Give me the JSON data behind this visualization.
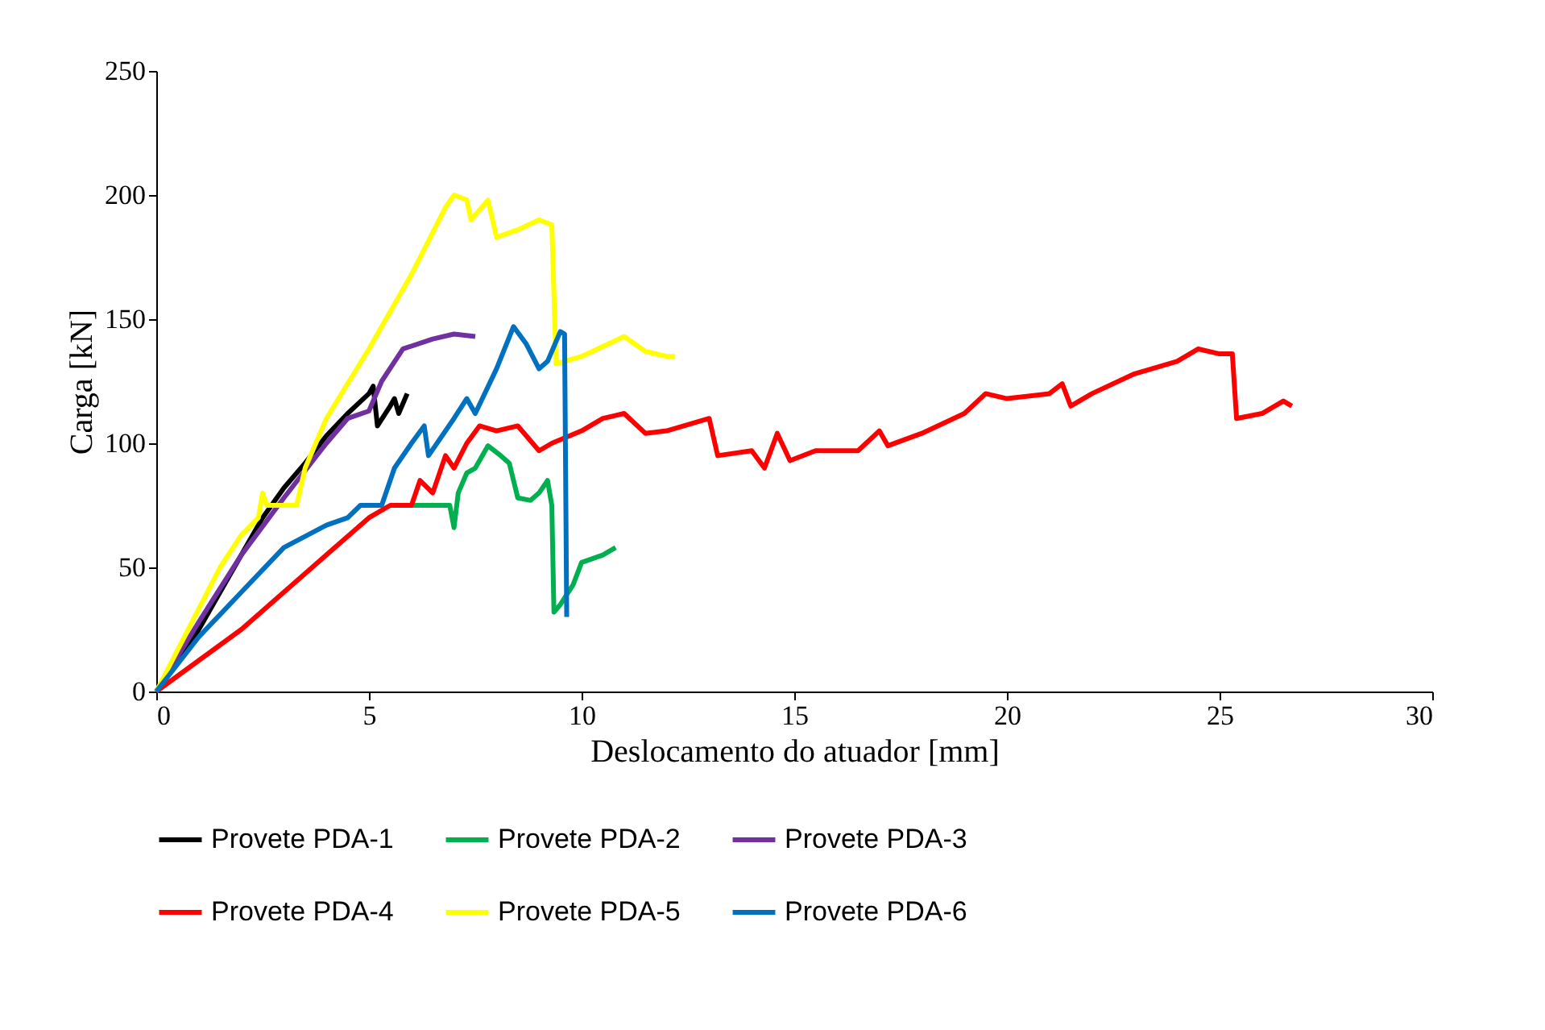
{
  "chart_data": {
    "type": "line",
    "xlabel": "Deslocamento do atuador [mm]",
    "ylabel": "Carga [kN]",
    "xlim": [
      0,
      30
    ],
    "ylim": [
      0,
      250
    ],
    "xticks": [
      0,
      5,
      10,
      15,
      20,
      25,
      30
    ],
    "yticks": [
      0,
      50,
      100,
      150,
      200,
      250
    ],
    "grid": false,
    "legend": "bottom",
    "marker": "none",
    "line_style": "solid",
    "series": [
      {
        "name": "Provete PDA-1",
        "color": "#000000",
        "x": [
          0,
          1,
          2,
          2.5,
          3,
          3.5,
          4,
          4.5,
          5,
          5.1,
          5.2,
          5.5,
          5.6,
          5.7,
          5.9
        ],
        "values": [
          0,
          25,
          55,
          70,
          82,
          92,
          103,
          112,
          120,
          123,
          107,
          115,
          118,
          112,
          120
        ]
      },
      {
        "name": "Provete PDA-2",
        "color": "#00b050",
        "x": [
          5.5,
          6.5,
          6.9,
          7,
          7.1,
          7.3,
          7.5,
          7.8,
          8.1,
          8.3,
          8.5,
          8.8,
          9,
          9.2,
          9.3,
          9.35,
          9.5,
          9.8,
          10,
          10.5,
          10.8
        ],
        "values": [
          75,
          75,
          75,
          66,
          80,
          88,
          90,
          99,
          95,
          92,
          78,
          77,
          80,
          85,
          75,
          32,
          35,
          43,
          52,
          55,
          58
        ]
      },
      {
        "name": "Provete PDA-3",
        "color": "#7030a0",
        "x": [
          0,
          1,
          2,
          3,
          4,
          4.5,
          5,
          5.3,
          5.8,
          6.5,
          7,
          7.5
        ],
        "values": [
          0,
          28,
          55,
          78,
          100,
          110,
          113,
          125,
          138,
          142,
          144,
          143
        ]
      },
      {
        "name": "Provete PDA-4",
        "color": "#ff0000",
        "x": [
          0,
          2,
          4,
          5,
          5.5,
          6,
          6.2,
          6.5,
          6.8,
          7,
          7.3,
          7.6,
          8,
          8.5,
          9,
          9.3,
          10,
          10.5,
          11,
          11.5,
          12,
          13,
          13.2,
          14,
          14.3,
          14.6,
          14.9,
          15.5,
          16.5,
          17,
          17.2,
          18,
          19,
          19.5,
          20,
          21,
          21.3,
          21.5,
          22,
          23,
          24,
          24.5,
          25,
          25.3,
          25.4,
          26,
          26.5,
          26.7
        ],
        "values": [
          0,
          25,
          55,
          70,
          75,
          75,
          85,
          80,
          95,
          90,
          100,
          107,
          105,
          107,
          97,
          100,
          105,
          110,
          112,
          104,
          105,
          110,
          95,
          97,
          90,
          104,
          93,
          97,
          97,
          105,
          99,
          104,
          112,
          120,
          118,
          120,
          124,
          115,
          120,
          128,
          133,
          138,
          136,
          136,
          110,
          112,
          117,
          115
        ]
      },
      {
        "name": "Provete PDA-5",
        "color": "#ffff00",
        "x": [
          0,
          1.5,
          2,
          2.4,
          2.5,
          2.6,
          3.3,
          3.5,
          4,
          5,
          6,
          6.8,
          7,
          7.3,
          7.4,
          7.8,
          8,
          8.5,
          9,
          9.3,
          9.4,
          10,
          11,
          11.5,
          12,
          12.2
        ],
        "values": [
          0,
          50,
          63,
          70,
          80,
          75,
          75,
          90,
          110,
          138,
          168,
          195,
          200,
          198,
          190,
          198,
          183,
          186,
          190,
          188,
          132,
          135,
          143,
          137,
          135,
          135
        ]
      },
      {
        "name": "Provete PDA-6",
        "color": "#0070c0",
        "x": [
          0,
          1,
          2,
          3,
          4,
          4.5,
          4.8,
          5.3,
          5.6,
          6,
          6.3,
          6.4,
          7,
          7.3,
          7.5,
          8,
          8.4,
          8.7,
          9,
          9.2,
          9.5,
          9.6,
          9.65
        ],
        "values": [
          0,
          22,
          40,
          58,
          67,
          70,
          75,
          75,
          90,
          100,
          107,
          95,
          110,
          118,
          112,
          130,
          147,
          140,
          130,
          133,
          145,
          144,
          30
        ]
      }
    ]
  }
}
